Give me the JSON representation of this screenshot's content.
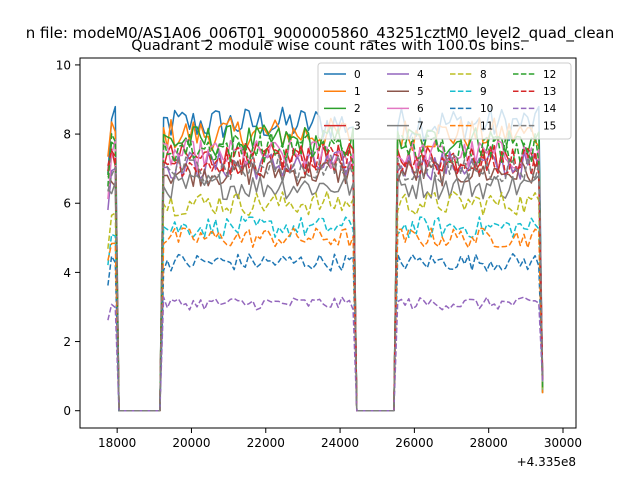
{
  "chart_data": {
    "type": "line",
    "suptitle": "n file: modeM0/AS1A06_006T01_9000005860_43251cztM0_level2_quad_clean",
    "title": "Quadrant 2 module wise count rates with 100.0s bins.",
    "xlabel": "",
    "ylabel": "",
    "x_offset_label": "+4.335e8",
    "xlim": [
      17000,
      30350
    ],
    "ylim": [
      -0.5,
      10.2
    ],
    "x_ticks": [
      18000,
      20000,
      22000,
      24000,
      26000,
      28000,
      30000
    ],
    "x_tick_labels": [
      "18000",
      "20000",
      "22000",
      "24000",
      "26000",
      "28000",
      "30000"
    ],
    "y_ticks": [
      0,
      2,
      4,
      6,
      8,
      10
    ],
    "y_tick_labels": [
      "0",
      "2",
      "4",
      "6",
      "8",
      "10"
    ],
    "grid": false,
    "legend_position": "top-right",
    "legend_columns": 4,
    "x_start": 17750,
    "bin_width": 100,
    "gaps": [
      [
        18000,
        19200
      ],
      [
        24400,
        25500
      ]
    ],
    "series": [
      {
        "name": "0",
        "color": "#1f77b4",
        "dash": "solid",
        "level": 8.3
      },
      {
        "name": "1",
        "color": "#ff7f0e",
        "dash": "solid",
        "level": 8.0
      },
      {
        "name": "2",
        "color": "#2ca02c",
        "dash": "solid",
        "level": 7.8
      },
      {
        "name": "3",
        "color": "#d62728",
        "dash": "solid",
        "level": 7.3
      },
      {
        "name": "4",
        "color": "#9467bd",
        "dash": "solid",
        "level": 7.1
      },
      {
        "name": "5",
        "color": "#8c564b",
        "dash": "solid",
        "level": 6.9
      },
      {
        "name": "6",
        "color": "#e377c2",
        "dash": "solid",
        "level": 7.4
      },
      {
        "name": "7",
        "color": "#7f7f7f",
        "dash": "solid",
        "level": 6.5
      },
      {
        "name": "8",
        "color": "#bcbd22",
        "dash": "dashed",
        "level": 6.0
      },
      {
        "name": "9",
        "color": "#17becf",
        "dash": "dashed",
        "level": 5.3
      },
      {
        "name": "10",
        "color": "#1f77b4",
        "dash": "dashed",
        "level": 4.3
      },
      {
        "name": "11",
        "color": "#ff7f0e",
        "dash": "dashed",
        "level": 5.0
      },
      {
        "name": "12",
        "color": "#2ca02c",
        "dash": "dashed",
        "level": 7.6
      },
      {
        "name": "13",
        "color": "#d62728",
        "dash": "dashed",
        "level": 7.2
      },
      {
        "name": "14",
        "color": "#9467bd",
        "dash": "dashed",
        "level": 3.1
      },
      {
        "name": "15",
        "color": "#7f7f7f",
        "dash": "dashed",
        "level": 7.0
      }
    ]
  }
}
